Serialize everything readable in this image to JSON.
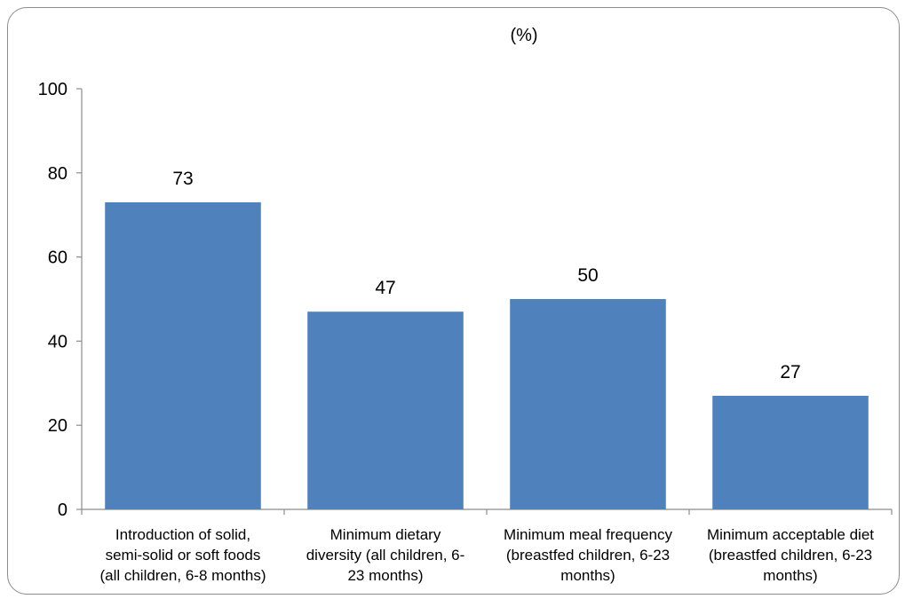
{
  "chart_data": {
    "type": "bar",
    "title": "(%)",
    "categories": [
      [
        "Introduction of solid,",
        "semi-solid or soft foods",
        "(all children, 6-8 months)"
      ],
      [
        "Minimum dietary",
        "diversity (all children, 6-",
        "23 months)"
      ],
      [
        "Minimum meal frequency",
        "(breastfed children, 6-23",
        "months)"
      ],
      [
        "Minimum acceptable diet",
        "(breastfed children, 6-23",
        "months)"
      ]
    ],
    "values": [
      73,
      47,
      50,
      27
    ],
    "data_labels": [
      "73",
      "47",
      "50",
      "27"
    ],
    "ylim": [
      0,
      100
    ],
    "yticks": [
      "0",
      "20",
      "40",
      "60",
      "80",
      "100"
    ],
    "bar_color": "#4f81bd",
    "grid": false,
    "xlabel": "",
    "ylabel": ""
  }
}
